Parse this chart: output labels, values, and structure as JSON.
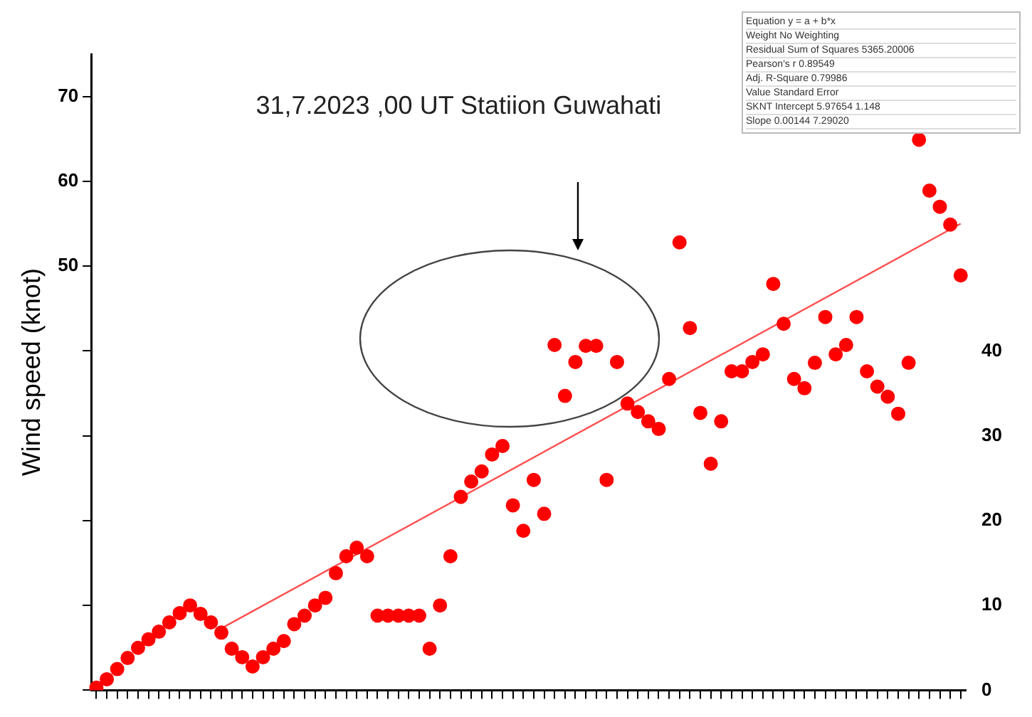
{
  "chart_data": {
    "type": "scatter",
    "title": "31,7.2023 ,00 UT Statiion Guwahati",
    "ylabel": "Wind speed (knot)",
    "categories": [
      null,
      null,
      null,
      null,
      null,
      null,
      null,
      null,
      null,
      null,
      null,
      null,
      null,
      null,
      null,
      null,
      null,
      null,
      null,
      null,
      null,
      null,
      null,
      null,
      null,
      null,
      null,
      null,
      null,
      null,
      null,
      null,
      null,
      null,
      null,
      null,
      null,
      null,
      null,
      null,
      null,
      null,
      null,
      null,
      null,
      null,
      null,
      null,
      null,
      null,
      null,
      null,
      null,
      null,
      null,
      null,
      null,
      null,
      null,
      null,
      null,
      null,
      null,
      null,
      null,
      null,
      null,
      null,
      null,
      null,
      null,
      null,
      null,
      null,
      null,
      null,
      null,
      null,
      null,
      null,
      null,
      null,
      null,
      null
    ],
    "series": [
      {
        "color": "#ff0000",
        "values": [
          0.3,
          1.3,
          2.5,
          3.8,
          5,
          6,
          6.9,
          8,
          9.1,
          10,
          9,
          8,
          6.8,
          4.9,
          3.9,
          2.8,
          3.9,
          4.9,
          5.8,
          7.8,
          8.8,
          10,
          10.9,
          13.8,
          15.8,
          16.8,
          15.8,
          8.8,
          8.8,
          8.8,
          8.8,
          8.8,
          4.9,
          10,
          15.8,
          22.8,
          24.6,
          25.8,
          27.8,
          28.8,
          21.8,
          18.8,
          24.8,
          20.8,
          40.7,
          34.7,
          38.7,
          40.6,
          40.6,
          24.8,
          38.7,
          33.8,
          32.8,
          31.7,
          30.8,
          36.7,
          52.8,
          42.7,
          32.7,
          26.7,
          31.7,
          37.6,
          37.6,
          38.7,
          39.6,
          47.9,
          43.2,
          36.7,
          35.6,
          38.6,
          44,
          39.6,
          40.7,
          44,
          37.6,
          35.8,
          34.6,
          32.6,
          38.6,
          64.9,
          58.9,
          57,
          54.9,
          48.9
        ]
      },
      {
        "type": "line",
        "marker": "none",
        "color": "#ff5050",
        "values": [
          null,
          null,
          null,
          null,
          null,
          null,
          null,
          null,
          null,
          null,
          null,
          null,
          7.3,
          null,
          null,
          null,
          null,
          null,
          null,
          null,
          null,
          null,
          null,
          null,
          null,
          null,
          null,
          null,
          null,
          null,
          null,
          null,
          null,
          null,
          null,
          null,
          null,
          null,
          null,
          null,
          null,
          null,
          null,
          null,
          null,
          null,
          null,
          null,
          null,
          null,
          null,
          null,
          null,
          null,
          null,
          null,
          null,
          null,
          null,
          null,
          null,
          null,
          null,
          null,
          null,
          null,
          null,
          null,
          null,
          null,
          null,
          null,
          null,
          null,
          null,
          null,
          null,
          null,
          null,
          null,
          null,
          null,
          null,
          55
        ]
      }
    ],
    "ylim": [
      0,
      75
    ],
    "yticks": [
      {
        "value": 0,
        "label": null
      },
      {
        "value": 10,
        "label": null
      },
      {
        "value": 20,
        "label": null
      },
      {
        "value": 30,
        "label": null
      },
      {
        "value": 40,
        "label": null
      },
      50,
      60,
      70
    ],
    "y2lim": [
      0,
      75
    ],
    "y2ticks": [
      0,
      10,
      20,
      30,
      40
    ],
    "tick_labels": "y",
    "grid": false,
    "legend": false,
    "marker": "circle",
    "annotations": [
      "Equation  y = a + b*x",
      "Weight  No Weighting",
      "Residual Sum of Squares  5365.20006",
      "Pearson's r  0.89549",
      "Adj. R-Square  0.79986",
      "Value  Standard Error",
      "SKNT  Intercept  5.97654  1.148",
      "Slope  0.00144  7.29020"
    ]
  }
}
